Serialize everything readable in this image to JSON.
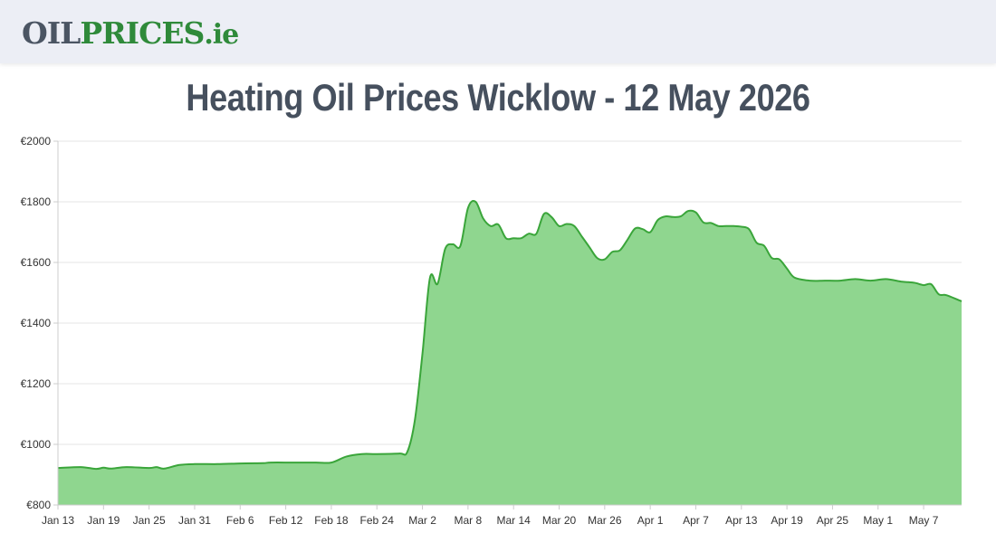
{
  "header": {
    "logo_oil": "OIL",
    "logo_prices": "PRICES",
    "logo_tld": ".ie"
  },
  "page_title": "Heating Oil Prices Wicklow - 12 May 2026",
  "colors": {
    "line": "#3aa53a",
    "fill": "#8fd68f",
    "grid": "#e6e6e6",
    "axis": "#cccccc"
  },
  "chart_data": {
    "type": "area",
    "title": "",
    "xlabel": "",
    "ylabel": "",
    "ylim": [
      800,
      2000
    ],
    "y_ticks": [
      800,
      1000,
      1200,
      1400,
      1600,
      1800,
      2000
    ],
    "y_tick_labels": [
      "€800",
      "€1000",
      "€1200",
      "€1400",
      "€1600",
      "€1800",
      "€2000"
    ],
    "x_range": [
      "2026-01-13",
      "2026-05-12"
    ],
    "x_ticks": [
      "2026-01-13",
      "2026-01-19",
      "2026-01-25",
      "2026-01-31",
      "2026-02-06",
      "2026-02-12",
      "2026-02-18",
      "2026-02-24",
      "2026-03-02",
      "2026-03-08",
      "2026-03-14",
      "2026-03-20",
      "2026-03-26",
      "2026-04-01",
      "2026-04-07",
      "2026-04-13",
      "2026-04-19",
      "2026-04-25",
      "2026-05-01",
      "2026-05-07"
    ],
    "x_tick_labels": [
      "Jan 13",
      "Jan 19",
      "Jan 25",
      "Jan 31",
      "Feb 6",
      "Feb 12",
      "Feb 18",
      "Feb 24",
      "Mar 2",
      "Mar 8",
      "Mar 14",
      "Mar 20",
      "Mar 26",
      "Apr 1",
      "Apr 7",
      "Apr 13",
      "Apr 19",
      "Apr 25",
      "May 1",
      "May 7"
    ],
    "grid": true,
    "legend": "none",
    "series": [
      {
        "x": [
          "2026-01-13",
          "2026-01-16",
          "2026-01-18",
          "2026-01-19",
          "2026-01-20",
          "2026-01-22",
          "2026-01-25",
          "2026-01-26",
          "2026-01-27",
          "2026-01-29",
          "2026-01-31",
          "2026-02-03",
          "2026-02-06",
          "2026-02-09",
          "2026-02-10",
          "2026-02-13",
          "2026-02-16",
          "2026-02-18",
          "2026-02-20",
          "2026-02-22",
          "2026-02-24",
          "2026-02-27",
          "2026-02-28",
          "2026-03-01",
          "2026-03-02",
          "2026-03-03",
          "2026-03-04",
          "2026-03-05",
          "2026-03-06",
          "2026-03-07",
          "2026-03-08",
          "2026-03-09",
          "2026-03-10",
          "2026-03-11",
          "2026-03-12",
          "2026-03-13",
          "2026-03-14",
          "2026-03-15",
          "2026-03-16",
          "2026-03-17",
          "2026-03-18",
          "2026-03-19",
          "2026-03-20",
          "2026-03-21",
          "2026-03-22",
          "2026-03-23",
          "2026-03-24",
          "2026-03-25",
          "2026-03-26",
          "2026-03-27",
          "2026-03-28",
          "2026-03-29",
          "2026-03-30",
          "2026-03-31",
          "2026-04-01",
          "2026-04-02",
          "2026-04-03",
          "2026-04-04",
          "2026-04-05",
          "2026-04-06",
          "2026-04-07",
          "2026-04-08",
          "2026-04-09",
          "2026-04-10",
          "2026-04-11",
          "2026-04-12",
          "2026-04-13",
          "2026-04-14",
          "2026-04-15",
          "2026-04-16",
          "2026-04-17",
          "2026-04-18",
          "2026-04-19",
          "2026-04-20",
          "2026-04-22",
          "2026-04-24",
          "2026-04-26",
          "2026-04-28",
          "2026-04-30",
          "2026-05-02",
          "2026-05-04",
          "2026-05-05",
          "2026-05-06",
          "2026-05-07",
          "2026-05-08",
          "2026-05-09",
          "2026-05-10",
          "2026-05-12"
        ],
        "y": [
          922,
          925,
          919,
          923,
          920,
          925,
          922,
          925,
          920,
          932,
          935,
          935,
          937,
          938,
          940,
          940,
          940,
          940,
          960,
          968,
          968,
          970,
          975,
          1080,
          1300,
          1550,
          1530,
          1645,
          1660,
          1655,
          1780,
          1800,
          1745,
          1720,
          1725,
          1680,
          1680,
          1680,
          1695,
          1695,
          1760,
          1750,
          1720,
          1727,
          1720,
          1685,
          1650,
          1615,
          1610,
          1635,
          1640,
          1675,
          1712,
          1710,
          1700,
          1740,
          1752,
          1750,
          1752,
          1770,
          1765,
          1732,
          1730,
          1720,
          1720,
          1720,
          1718,
          1710,
          1665,
          1655,
          1615,
          1610,
          1580,
          1550,
          1540,
          1540,
          1540,
          1545,
          1540,
          1545,
          1537,
          1535,
          1532,
          1525,
          1528,
          1495,
          1492,
          1472
        ]
      }
    ]
  }
}
